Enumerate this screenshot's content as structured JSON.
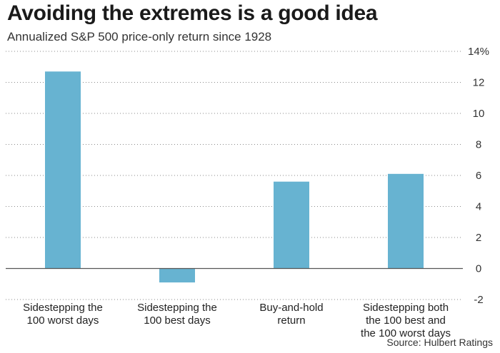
{
  "chart_data": {
    "type": "bar",
    "title": "Avoiding the extremes is a good idea",
    "subtitle": "Annualized S&P 500 price-only return since 1928",
    "source": "Source: Hulbert Ratings",
    "categories": [
      [
        "Sidestepping the",
        "100 worst days"
      ],
      [
        "Sidestepping the",
        "100 best days"
      ],
      [
        "Buy-and-hold",
        "return"
      ],
      [
        "Sidestepping both",
        "the 100 best and",
        "the 100 worst days"
      ]
    ],
    "values": [
      12.7,
      -0.9,
      5.6,
      6.1
    ],
    "ylim": [
      -2,
      14
    ],
    "yticks": [
      -2,
      0,
      2,
      4,
      6,
      8,
      10,
      12,
      14
    ],
    "ytick_labels": [
      "-2",
      "0",
      "2",
      "4",
      "6",
      "8",
      "10",
      "12",
      "14%"
    ],
    "bar_color": "#67b3d1",
    "grid": "horizontal dotted",
    "zero_line_color": "#555555"
  }
}
